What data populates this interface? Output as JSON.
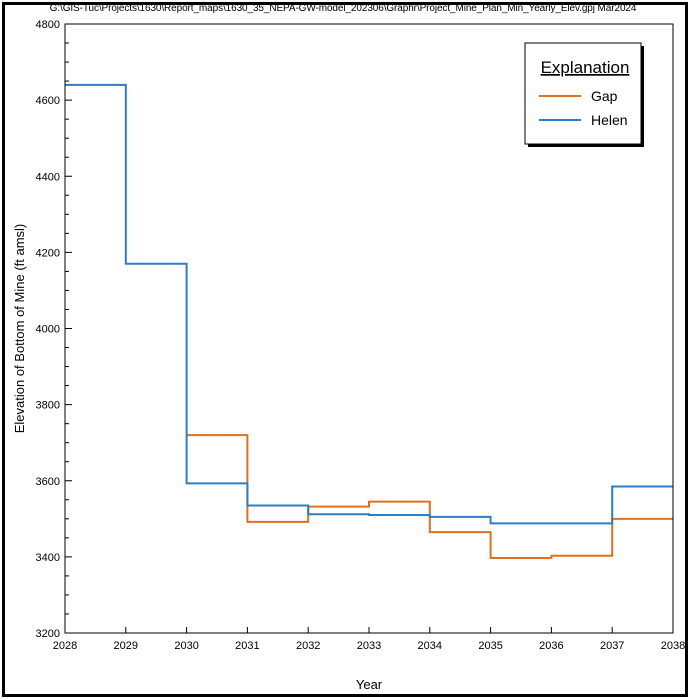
{
  "header": {
    "file_path": "G:\\GIS-Tuc\\Projects\\1630\\Report_maps\\1630_35_NEPA-GW-model_202306\\Graphr\\Project_Mine_Plan_Min_Yearly_Elev.gpj Mar2024"
  },
  "chart_data": {
    "type": "line",
    "step": "post",
    "xlabel": "Year",
    "ylabel": "Elevation of Bottom of Mine (ft amsl)",
    "xlim": [
      2028,
      2038
    ],
    "ylim": [
      3200,
      4800
    ],
    "x_ticks": [
      "2028",
      "2029",
      "2030",
      "2031",
      "2032",
      "2033",
      "2034",
      "2035",
      "2036",
      "2037",
      "2038"
    ],
    "y_ticks": [
      "3200",
      "3400",
      "3600",
      "3800",
      "4000",
      "4200",
      "4400",
      "4600",
      "4800"
    ],
    "grid": false,
    "legend": {
      "title": "Explanation",
      "placement": "top-right"
    },
    "series": [
      {
        "name": "Gap",
        "color": "#E07020",
        "x": [
          2030,
          2031,
          2032,
          2033,
          2034,
          2035,
          2036,
          2037,
          2038
        ],
        "values": [
          3720,
          3492,
          3532,
          3545,
          3465,
          3397,
          3403,
          3500,
          3500
        ]
      },
      {
        "name": "Helen",
        "color": "#2A7FC8",
        "x": [
          2028,
          2029,
          2030,
          2031,
          2032,
          2033,
          2034,
          2035,
          2036,
          2037,
          2038
        ],
        "values": [
          4640,
          4170,
          3593,
          3535,
          3512,
          3510,
          3505,
          3488,
          3488,
          3585,
          3585
        ]
      }
    ]
  }
}
